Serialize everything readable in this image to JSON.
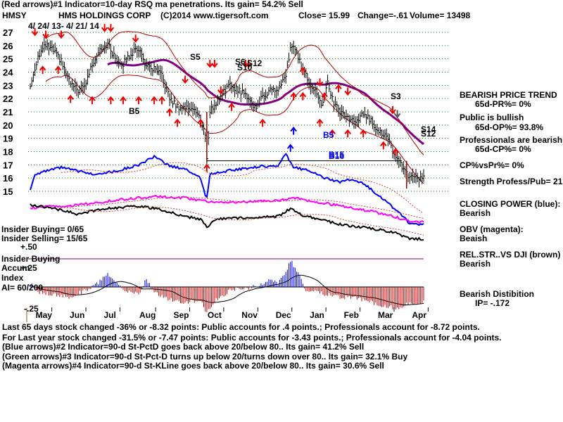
{
  "header": {
    "line1": "(Red arrows)#1 Indicator=10-day RSQ ma penetrations. Its gain= 54.2% Sell",
    "ticker": "HMSY",
    "company": "HMS HOLDINGS CORP",
    "copyright": "(C)2014 www.tigersoft.com",
    "close": "Close=  15.99",
    "change": "Change=-.61",
    "volume": "Volume= 13498",
    "date_range": "4/ 24/ 13-  4/ 21/ 14"
  },
  "colors": {
    "red": "#ee0000",
    "blue": "#0000ff",
    "magenta": "#ff00ff",
    "purple": "#800080",
    "grid": "#008000",
    "darkred": "#990000",
    "bars": "#000000"
  },
  "right_panel": {
    "bearish_trend_title": "BEARISH PRICE TREND",
    "pr": "65d-PR%= 0%",
    "public_bullish": "Public is bullish",
    "op": "65d-OP%= 93.8%",
    "professionals_bearish": "Professionals are bearish",
    "cp": "65d-CP%= 0%",
    "cp_vs_pr": "CP%vsPr%=  0%",
    "strength": "Strength Profess/Pub= 21",
    "closing_power": "CLOSING POWER (blue):",
    "closing_power_val": "Bearish",
    "obv": "OBV (magenta):",
    "obv_val": "Beaish",
    "relstr": "REL.STR..VS DJI (brown)",
    "relstr_val": "Bearish",
    "distribution": "Bearish Distibition",
    "ip": "IP= -.172"
  },
  "insider": {
    "buying": "Insider Buying= 0/65",
    "selling": "Insider Selling= 15/65",
    "plus50": "+.50",
    "buying2": "Insider Buying",
    "accum": "Accum",
    "index": "Index",
    "plus25": "+.25",
    "ai": "AI= 60/200",
    "minus25": "-.25"
  },
  "footer": {
    "line1": "Last 65 days stock changed -36% or -8.32 points:  Public accounts for  .4 points.;  Professionals account for -8.72 points.",
    "line2": "For Last year stock changed -31.5% or -7.47 points:  Public accounts for -3.43 points.;  Professionals account for -4.04 points.",
    "line3": "(Blue arrows)#2 Indicator=90-d St-PctD goes back above 20/below 80.. Its gain= 41.2% Sell",
    "line4": "(Green arrows)#3 Indicator=90-d St-Pct-D turns up below 20/turns down over 80.. Its gain= 32.1% Buy",
    "line5": "(Magenta arrows)#4 Indicator=90-d St-KLine goes back above 20/below 80.. Its gain= 30.6% Sell"
  },
  "signal_labels": [
    "S5",
    "S6",
    "S12",
    "S10",
    "B5",
    "B5",
    "S3",
    "S14",
    "S12",
    "B16",
    "B15"
  ],
  "chart_data": {
    "type": "line",
    "title": "HMS HOLDINGS CORP",
    "xlabel": "",
    "ylabel": "",
    "x_tick_labels": [
      "May",
      "Jun",
      "Jul",
      "Aug",
      "Sep",
      "Oct",
      "Nov",
      "Dec",
      "Jan",
      "Feb",
      "Mar",
      "Apr"
    ],
    "x_tick_days": [
      8,
      30,
      52,
      75,
      97,
      119,
      141,
      163,
      185,
      207,
      229,
      251
    ],
    "y_tick_labels": [
      "27",
      "26",
      "25",
      "24",
      "23",
      "22",
      "21",
      "20",
      "19",
      "18",
      "17",
      "16",
      "15"
    ],
    "ylim": [
      14.5,
      27.5
    ],
    "n_days": 255,
    "grid": true,
    "price_anchors": [
      [
        0,
        22.9
      ],
      [
        5,
        25.2
      ],
      [
        10,
        26.0
      ],
      [
        15,
        25.6
      ],
      [
        20,
        24.8
      ],
      [
        25,
        23.3
      ],
      [
        30,
        22.6
      ],
      [
        35,
        22.9
      ],
      [
        40,
        24.6
      ],
      [
        45,
        25.8
      ],
      [
        50,
        26.1
      ],
      [
        55,
        25.0
      ],
      [
        60,
        24.6
      ],
      [
        65,
        25.4
      ],
      [
        70,
        25.8
      ],
      [
        75,
        24.4
      ],
      [
        80,
        24.2
      ],
      [
        85,
        23.7
      ],
      [
        90,
        22.0
      ],
      [
        95,
        21.4
      ],
      [
        100,
        21.3
      ],
      [
        105,
        21.3
      ],
      [
        110,
        20.4
      ],
      [
        113,
        19.3
      ],
      [
        114,
        17.3
      ],
      [
        116,
        21.1
      ],
      [
        120,
        21.6
      ],
      [
        125,
        22.7
      ],
      [
        130,
        23.0
      ],
      [
        135,
        22.6
      ],
      [
        140,
        22.2
      ],
      [
        145,
        21.3
      ],
      [
        150,
        22.1
      ],
      [
        155,
        22.7
      ],
      [
        160,
        22.6
      ],
      [
        165,
        23.6
      ],
      [
        168,
        25.8
      ],
      [
        170,
        26.0
      ],
      [
        175,
        24.5
      ],
      [
        180,
        23.3
      ],
      [
        185,
        22.4
      ],
      [
        188,
        21.4
      ],
      [
        192,
        23.1
      ],
      [
        196,
        21.7
      ],
      [
        200,
        21.0
      ],
      [
        205,
        20.6
      ],
      [
        210,
        20.1
      ],
      [
        215,
        20.9
      ],
      [
        220,
        20.3
      ],
      [
        225,
        19.6
      ],
      [
        230,
        19.1
      ],
      [
        235,
        17.8
      ],
      [
        240,
        16.9
      ],
      [
        242,
        16.4
      ],
      [
        245,
        15.99
      ]
    ],
    "series": [
      {
        "name": "CLOSING POWER (blue)",
        "color": "#0000ff",
        "anchors": [
          [
            0,
            15.1
          ],
          [
            3,
            16.3
          ],
          [
            20,
            16.8
          ],
          [
            40,
            16.3
          ],
          [
            55,
            16.5
          ],
          [
            70,
            17.0
          ],
          [
            80,
            17.6
          ],
          [
            90,
            16.9
          ],
          [
            100,
            16.7
          ],
          [
            110,
            16.0
          ],
          [
            113,
            14.7
          ],
          [
            114,
            14.5
          ],
          [
            116,
            16.3
          ],
          [
            130,
            16.6
          ],
          [
            150,
            16.9
          ],
          [
            160,
            16.9
          ],
          [
            165,
            17.8
          ],
          [
            170,
            16.8
          ],
          [
            180,
            16.6
          ],
          [
            190,
            16.0
          ],
          [
            200,
            15.7
          ],
          [
            205,
            15.9
          ],
          [
            215,
            15.6
          ],
          [
            225,
            14.7
          ],
          [
            232,
            14.0
          ],
          [
            240,
            13.2
          ],
          [
            245,
            12.5
          ]
        ]
      },
      {
        "name": "OBV (magenta)",
        "color": "#ff00ff",
        "anchors": [
          [
            0,
            13.7
          ],
          [
            10,
            13.9
          ],
          [
            20,
            13.8
          ],
          [
            40,
            14.1
          ],
          [
            60,
            14.4
          ],
          [
            80,
            14.6
          ],
          [
            100,
            14.5
          ],
          [
            110,
            14.3
          ],
          [
            120,
            14.2
          ],
          [
            140,
            14.2
          ],
          [
            160,
            14.3
          ],
          [
            170,
            14.5
          ],
          [
            185,
            14.2
          ],
          [
            200,
            13.9
          ],
          [
            220,
            13.5
          ],
          [
            235,
            13.1
          ],
          [
            245,
            12.7
          ]
        ]
      },
      {
        "name": "REL.STR..VS DJI (brown)",
        "color": "#000000",
        "anchors": [
          [
            0,
            14.0
          ],
          [
            10,
            13.8
          ],
          [
            20,
            13.6
          ],
          [
            30,
            13.3
          ],
          [
            50,
            13.7
          ],
          [
            70,
            13.9
          ],
          [
            85,
            13.6
          ],
          [
            100,
            13.1
          ],
          [
            110,
            12.9
          ],
          [
            114,
            12.3
          ],
          [
            120,
            12.9
          ],
          [
            140,
            13.0
          ],
          [
            160,
            13.1
          ],
          [
            168,
            13.7
          ],
          [
            175,
            13.2
          ],
          [
            190,
            12.8
          ],
          [
            200,
            12.5
          ],
          [
            220,
            12.2
          ],
          [
            235,
            11.9
          ],
          [
            245,
            11.4
          ]
        ]
      }
    ]
  }
}
